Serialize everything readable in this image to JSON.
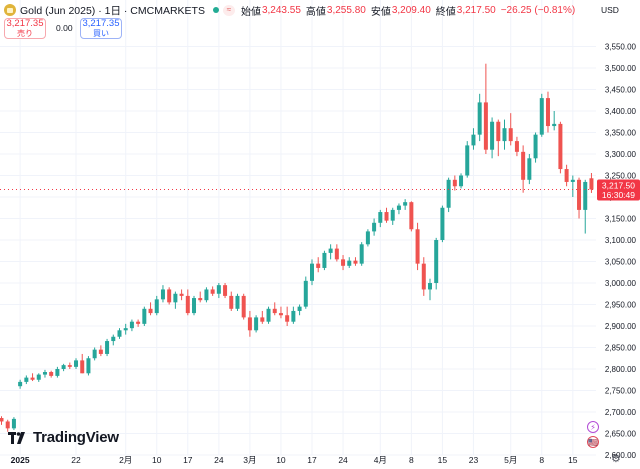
{
  "header": {
    "symbol_title": "Gold (Jun 2025) · 1日 · CMCMARKETS",
    "wave_icon": "≈",
    "ohlc": [
      {
        "label": "始値",
        "value": "3,243.55"
      },
      {
        "label": "高値",
        "value": "3,255.80"
      },
      {
        "label": "安値",
        "value": "3,209.40"
      },
      {
        "label": "終値",
        "value": "3,217.50"
      },
      {
        "label": "",
        "value": "−26.25 (−0.81%)"
      }
    ],
    "currency": "USD"
  },
  "trade": {
    "sell_price": "3,217.35",
    "sell_label": "売り",
    "spread": "0.00",
    "buy_price": "3,217.35",
    "buy_label": "買い"
  },
  "watermark": "TradingView",
  "price_tag": {
    "price": "3,217.50",
    "countdown": "16:30:49",
    "color": "#f23645"
  },
  "colors": {
    "up": "#26a69a",
    "down": "#ef5350",
    "grid": "#f0f3fa",
    "axis_text": "#131722"
  },
  "badges": [
    {
      "icon": "⚡"
    },
    {
      "icon": "🇺🇸"
    }
  ],
  "chart_data": {
    "type": "candlestick",
    "y_axis": {
      "range": [
        2590,
        3580
      ],
      "ticks": [
        2600,
        2650,
        2700,
        2750,
        2800,
        2850,
        2900,
        2950,
        3000,
        3050,
        3100,
        3150,
        3200,
        3250,
        3300,
        3350,
        3400,
        3450,
        3500,
        3550
      ],
      "tick_labels": [
        "2,600.00",
        "2,650.00",
        "2,700.00",
        "2,750.00",
        "2,800.00",
        "2,850.00",
        "2,900.00",
        "2,950.00",
        "3,000.00",
        "3,050.00",
        "3,100.00",
        "3,150.00",
        "3,200.00",
        "3,250.00",
        "3,300.00",
        "3,350.00",
        "3,400.00",
        "3,450.00",
        "3,500.00",
        "3,550.00"
      ]
    },
    "x_axis": {
      "ticks": [
        {
          "i": 3,
          "label": "2025",
          "bold": true
        },
        {
          "i": 12,
          "label": "22"
        },
        {
          "i": 20,
          "label": "2月"
        },
        {
          "i": 25,
          "label": "10"
        },
        {
          "i": 30,
          "label": "17"
        },
        {
          "i": 35,
          "label": "24"
        },
        {
          "i": 40,
          "label": "3月"
        },
        {
          "i": 45,
          "label": "10"
        },
        {
          "i": 50,
          "label": "17"
        },
        {
          "i": 55,
          "label": "24"
        },
        {
          "i": 61,
          "label": "4月"
        },
        {
          "i": 66,
          "label": "8"
        },
        {
          "i": 71,
          "label": "15"
        },
        {
          "i": 76,
          "label": "23"
        },
        {
          "i": 82,
          "label": "5月"
        },
        {
          "i": 87,
          "label": "8"
        },
        {
          "i": 92,
          "label": "15"
        }
      ]
    },
    "candles": [
      {
        "o": 2686,
        "h": 2690,
        "l": 2670,
        "c": 2678
      },
      {
        "o": 2678,
        "h": 2682,
        "l": 2654,
        "c": 2662
      },
      {
        "o": 2662,
        "h": 2688,
        "l": 2658,
        "c": 2684
      },
      {
        "o": 2760,
        "h": 2775,
        "l": 2754,
        "c": 2770
      },
      {
        "o": 2770,
        "h": 2785,
        "l": 2765,
        "c": 2780
      },
      {
        "o": 2780,
        "h": 2790,
        "l": 2772,
        "c": 2775
      },
      {
        "o": 2775,
        "h": 2790,
        "l": 2770,
        "c": 2787
      },
      {
        "o": 2787,
        "h": 2798,
        "l": 2780,
        "c": 2793
      },
      {
        "o": 2793,
        "h": 2796,
        "l": 2780,
        "c": 2784
      },
      {
        "o": 2784,
        "h": 2805,
        "l": 2780,
        "c": 2800
      },
      {
        "o": 2800,
        "h": 2812,
        "l": 2795,
        "c": 2809
      },
      {
        "o": 2809,
        "h": 2815,
        "l": 2800,
        "c": 2805
      },
      {
        "o": 2805,
        "h": 2825,
        "l": 2800,
        "c": 2820
      },
      {
        "o": 2820,
        "h": 2835,
        "l": 2790,
        "c": 2790
      },
      {
        "o": 2790,
        "h": 2830,
        "l": 2785,
        "c": 2825
      },
      {
        "o": 2825,
        "h": 2850,
        "l": 2820,
        "c": 2845
      },
      {
        "o": 2845,
        "h": 2855,
        "l": 2830,
        "c": 2835
      },
      {
        "o": 2835,
        "h": 2870,
        "l": 2830,
        "c": 2865
      },
      {
        "o": 2865,
        "h": 2880,
        "l": 2855,
        "c": 2875
      },
      {
        "o": 2875,
        "h": 2895,
        "l": 2870,
        "c": 2890
      },
      {
        "o": 2890,
        "h": 2905,
        "l": 2880,
        "c": 2895
      },
      {
        "o": 2895,
        "h": 2915,
        "l": 2888,
        "c": 2910
      },
      {
        "o": 2910,
        "h": 2915,
        "l": 2898,
        "c": 2905
      },
      {
        "o": 2905,
        "h": 2945,
        "l": 2900,
        "c": 2940
      },
      {
        "o": 2940,
        "h": 2955,
        "l": 2925,
        "c": 2930
      },
      {
        "o": 2930,
        "h": 2970,
        "l": 2925,
        "c": 2962
      },
      {
        "o": 2962,
        "h": 2995,
        "l": 2955,
        "c": 2985
      },
      {
        "o": 2985,
        "h": 2990,
        "l": 2950,
        "c": 2955
      },
      {
        "o": 2955,
        "h": 2980,
        "l": 2940,
        "c": 2975
      },
      {
        "o": 2975,
        "h": 2985,
        "l": 2960,
        "c": 2970
      },
      {
        "o": 2970,
        "h": 2985,
        "l": 2925,
        "c": 2930
      },
      {
        "o": 2930,
        "h": 2970,
        "l": 2925,
        "c": 2965
      },
      {
        "o": 2965,
        "h": 2980,
        "l": 2955,
        "c": 2960
      },
      {
        "o": 2960,
        "h": 2990,
        "l": 2955,
        "c": 2985
      },
      {
        "o": 2985,
        "h": 2992,
        "l": 2970,
        "c": 2975
      },
      {
        "o": 2975,
        "h": 3000,
        "l": 2965,
        "c": 2995
      },
      {
        "o": 2995,
        "h": 3000,
        "l": 2965,
        "c": 2970
      },
      {
        "o": 2970,
        "h": 2980,
        "l": 2935,
        "c": 2940
      },
      {
        "o": 2940,
        "h": 2975,
        "l": 2935,
        "c": 2970
      },
      {
        "o": 2970,
        "h": 2975,
        "l": 2915,
        "c": 2920
      },
      {
        "o": 2920,
        "h": 2935,
        "l": 2875,
        "c": 2890
      },
      {
        "o": 2890,
        "h": 2925,
        "l": 2885,
        "c": 2920
      },
      {
        "o": 2920,
        "h": 2935,
        "l": 2905,
        "c": 2910
      },
      {
        "o": 2910,
        "h": 2945,
        "l": 2905,
        "c": 2940
      },
      {
        "o": 2940,
        "h": 2955,
        "l": 2925,
        "c": 2930
      },
      {
        "o": 2930,
        "h": 2945,
        "l": 2918,
        "c": 2925
      },
      {
        "o": 2925,
        "h": 2945,
        "l": 2900,
        "c": 2910
      },
      {
        "o": 2910,
        "h": 2945,
        "l": 2905,
        "c": 2935
      },
      {
        "o": 2935,
        "h": 2950,
        "l": 2925,
        "c": 2945
      },
      {
        "o": 2945,
        "h": 3015,
        "l": 2940,
        "c": 3005
      },
      {
        "o": 3005,
        "h": 3055,
        "l": 2995,
        "c": 3045
      },
      {
        "o": 3045,
        "h": 3060,
        "l": 3025,
        "c": 3035
      },
      {
        "o": 3035,
        "h": 3075,
        "l": 3030,
        "c": 3070
      },
      {
        "o": 3070,
        "h": 3090,
        "l": 3055,
        "c": 3080
      },
      {
        "o": 3080,
        "h": 3090,
        "l": 3050,
        "c": 3055
      },
      {
        "o": 3055,
        "h": 3065,
        "l": 3030,
        "c": 3040
      },
      {
        "o": 3040,
        "h": 3060,
        "l": 3035,
        "c": 3052
      },
      {
        "o": 3052,
        "h": 3060,
        "l": 3040,
        "c": 3045
      },
      {
        "o": 3045,
        "h": 3095,
        "l": 3040,
        "c": 3090
      },
      {
        "o": 3090,
        "h": 3125,
        "l": 3085,
        "c": 3120
      },
      {
        "o": 3120,
        "h": 3150,
        "l": 3110,
        "c": 3140
      },
      {
        "o": 3140,
        "h": 3170,
        "l": 3130,
        "c": 3165
      },
      {
        "o": 3165,
        "h": 3175,
        "l": 3140,
        "c": 3145
      },
      {
        "o": 3145,
        "h": 3175,
        "l": 3135,
        "c": 3170
      },
      {
        "o": 3170,
        "h": 3185,
        "l": 3160,
        "c": 3180
      },
      {
        "o": 3180,
        "h": 3195,
        "l": 3170,
        "c": 3188
      },
      {
        "o": 3188,
        "h": 3190,
        "l": 3120,
        "c": 3125
      },
      {
        "o": 3125,
        "h": 3140,
        "l": 3030,
        "c": 3045
      },
      {
        "o": 3045,
        "h": 3060,
        "l": 2970,
        "c": 2985
      },
      {
        "o": 2985,
        "h": 3010,
        "l": 2960,
        "c": 3000
      },
      {
        "o": 3000,
        "h": 3105,
        "l": 2985,
        "c": 3100
      },
      {
        "o": 3100,
        "h": 3180,
        "l": 3095,
        "c": 3175
      },
      {
        "o": 3175,
        "h": 3245,
        "l": 3165,
        "c": 3240
      },
      {
        "o": 3240,
        "h": 3250,
        "l": 3215,
        "c": 3225
      },
      {
        "o": 3225,
        "h": 3255,
        "l": 3220,
        "c": 3250
      },
      {
        "o": 3250,
        "h": 3330,
        "l": 3245,
        "c": 3320
      },
      {
        "o": 3320,
        "h": 3360,
        "l": 3310,
        "c": 3345
      },
      {
        "o": 3345,
        "h": 3440,
        "l": 3330,
        "c": 3420
      },
      {
        "o": 3420,
        "h": 3510,
        "l": 3300,
        "c": 3310
      },
      {
        "o": 3310,
        "h": 3385,
        "l": 3290,
        "c": 3375
      },
      {
        "o": 3375,
        "h": 3380,
        "l": 3295,
        "c": 3330
      },
      {
        "o": 3330,
        "h": 3380,
        "l": 3310,
        "c": 3360
      },
      {
        "o": 3360,
        "h": 3395,
        "l": 3320,
        "c": 3330
      },
      {
        "o": 3330,
        "h": 3340,
        "l": 3295,
        "c": 3305
      },
      {
        "o": 3305,
        "h": 3320,
        "l": 3210,
        "c": 3240
      },
      {
        "o": 3240,
        "h": 3300,
        "l": 3230,
        "c": 3290
      },
      {
        "o": 3290,
        "h": 3350,
        "l": 3280,
        "c": 3345
      },
      {
        "o": 3345,
        "h": 3440,
        "l": 3340,
        "c": 3430
      },
      {
        "o": 3430,
        "h": 3445,
        "l": 3350,
        "c": 3365
      },
      {
        "o": 3365,
        "h": 3400,
        "l": 3355,
        "c": 3370
      },
      {
        "o": 3370,
        "h": 3375,
        "l": 3255,
        "c": 3265
      },
      {
        "o": 3265,
        "h": 3275,
        "l": 3225,
        "c": 3235
      },
      {
        "o": 3235,
        "h": 3250,
        "l": 3200,
        "c": 3240
      },
      {
        "o": 3240,
        "h": 3245,
        "l": 3150,
        "c": 3170
      },
      {
        "o": 3170,
        "h": 3240,
        "l": 3115,
        "c": 3235
      },
      {
        "o": 3243.55,
        "h": 3255.8,
        "l": 3209.4,
        "c": 3217.5
      }
    ]
  }
}
